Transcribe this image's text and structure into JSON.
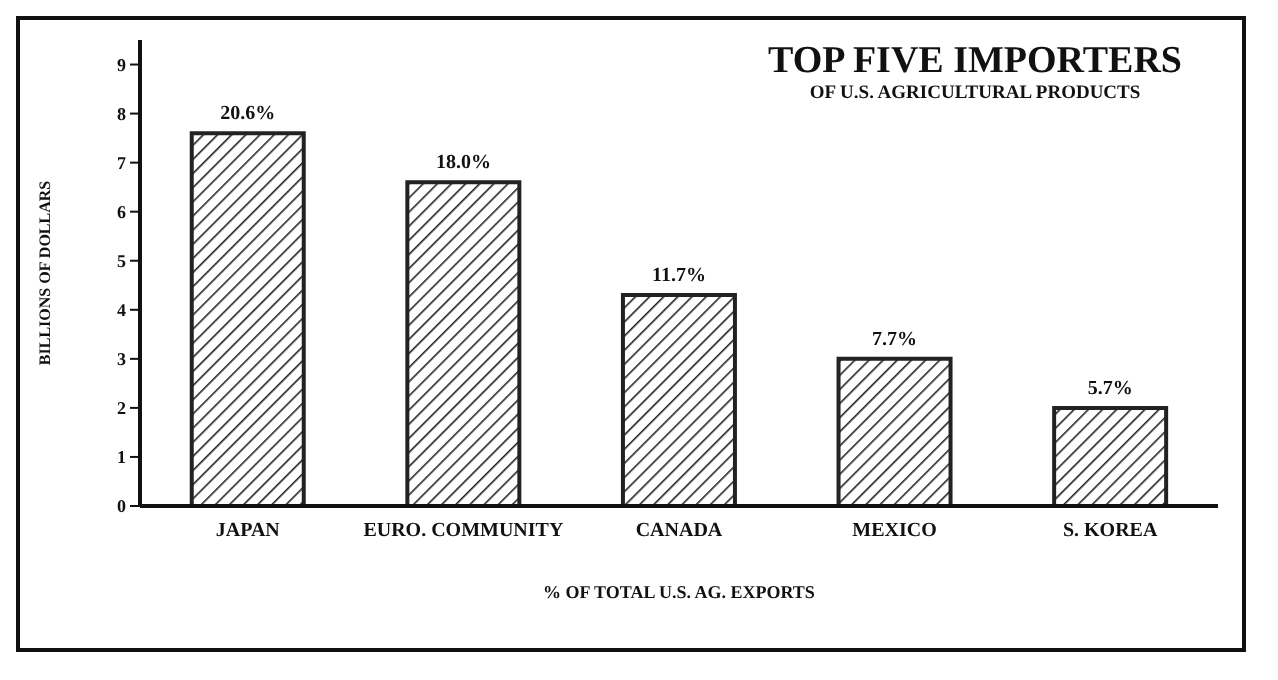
{
  "chart_data": {
    "type": "bar",
    "title": "TOP FIVE IMPORTERS",
    "subtitle": "OF U.S. AGRICULTURAL PRODUCTS",
    "ylabel": "BILLIONS OF DOLLARS",
    "xlabel": "% OF TOTAL U.S. AG. EXPORTS",
    "categories": [
      "JAPAN",
      "EURO. COMMUNITY",
      "CANADA",
      "MEXICO",
      "S. KOREA"
    ],
    "values": [
      7.6,
      6.6,
      4.3,
      3.0,
      2.0
    ],
    "annotations": [
      {
        "text": "20.6%",
        "x": "JAPAN",
        "y": 7.6
      },
      {
        "text": "18.0%",
        "x": "EURO. COMMUNITY",
        "y": 6.6
      },
      {
        "text": "11.7%",
        "x": "CANADA",
        "y": 4.3
      },
      {
        "text": "7.7%",
        "x": "MEXICO",
        "y": 3.0
      },
      {
        "text": "5.7%",
        "x": "S. KOREA",
        "y": 2.0
      }
    ],
    "color": "#222222",
    "ylim": [
      0,
      9.5
    ],
    "yticks": [
      0,
      1,
      2,
      3,
      4,
      5,
      6,
      7,
      8,
      9
    ],
    "grid": false,
    "legend": false
  }
}
